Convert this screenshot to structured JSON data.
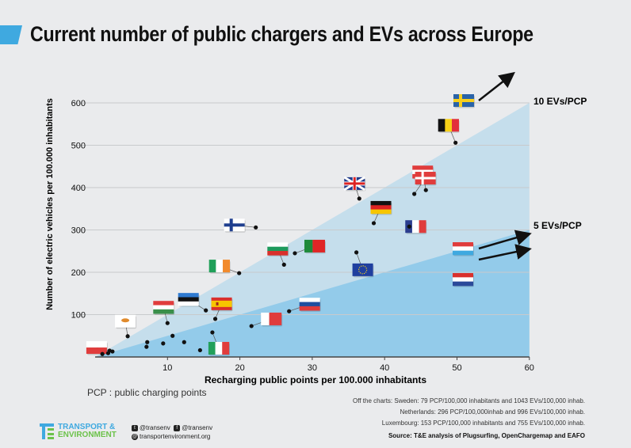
{
  "header": {
    "title": "Current number of public chargers and EVs across Europe",
    "accent": "#3fa9e0"
  },
  "chart_data": {
    "type": "scatter",
    "xlabel": "Recharging public points per 100.000 inhabitants",
    "ylabel": "Number of electric vehicles per 100.000 inhabitants",
    "xlim": [
      0,
      60
    ],
    "ylim": [
      0,
      650
    ],
    "xticks": [
      10,
      20,
      30,
      40,
      50,
      60
    ],
    "yticks": [
      100,
      200,
      300,
      400,
      500,
      600
    ],
    "grid": "horizontal",
    "ratio_lines": [
      {
        "label": "10 EVs/PCP",
        "ratio": 10,
        "color": "#c5deec"
      },
      {
        "label": "5 EVs/PCP",
        "ratio": 5,
        "color": "#93cbea"
      }
    ],
    "points": [
      {
        "country": "Belgium",
        "x": 49.8,
        "y": 506
      },
      {
        "country": "United Kingdom",
        "x": 36.5,
        "y": 374
      },
      {
        "country": "Germany",
        "x": 38.5,
        "y": 316
      },
      {
        "country": "Austria",
        "x": 45.7,
        "y": 394
      },
      {
        "country": "Denmark",
        "x": 44.1,
        "y": 385
      },
      {
        "country": "France",
        "x": 43.4,
        "y": 308
      },
      {
        "country": "European Union",
        "x": 36.1,
        "y": 247
      },
      {
        "country": "Finland",
        "x": 22.2,
        "y": 306
      },
      {
        "country": "Bulgaria",
        "x": 26.1,
        "y": 218
      },
      {
        "country": "Portugal",
        "x": 27.6,
        "y": 245
      },
      {
        "country": "Ireland",
        "x": 19.9,
        "y": 198
      },
      {
        "country": "Hungary",
        "x": 10.0,
        "y": 80
      },
      {
        "country": "Estonia",
        "x": 15.3,
        "y": 110
      },
      {
        "country": "Spain",
        "x": 16.6,
        "y": 90
      },
      {
        "country": "Cyprus",
        "x": 4.5,
        "y": 49
      },
      {
        "country": "Poland",
        "x": 2.4,
        "y": 13
      },
      {
        "country": "Italy",
        "x": 16.2,
        "y": 58
      },
      {
        "country": "Malta",
        "x": 21.6,
        "y": 73
      },
      {
        "country": "Slovenia",
        "x": 26.8,
        "y": 108
      },
      {
        "country": "",
        "x": 1.0,
        "y": 7
      },
      {
        "country": "",
        "x": 1.8,
        "y": 9
      },
      {
        "country": "",
        "x": 2.0,
        "y": 15
      },
      {
        "country": "",
        "x": 7.1,
        "y": 24
      },
      {
        "country": "",
        "x": 7.2,
        "y": 35
      },
      {
        "country": "",
        "x": 9.4,
        "y": 32
      },
      {
        "country": "",
        "x": 10.7,
        "y": 50
      },
      {
        "country": "",
        "x": 12.3,
        "y": 35
      },
      {
        "country": "",
        "x": 14.5,
        "y": 16
      }
    ],
    "off_chart": [
      {
        "country": "Sweden",
        "x": 79,
        "y": 1043
      },
      {
        "country": "Luxembourg",
        "x": 153,
        "y": 755
      },
      {
        "country": "Netherlands",
        "x": 296,
        "y": 996
      }
    ]
  },
  "footer": {
    "pcp_note": "PCP : public charging points",
    "off_chart_lines": [
      "Off the charts: Sweden: 79 PCP/100,000 inhabitants and 1043 EVs/100,000 inhab.",
      "Netherlands: 296 PCP/100,000inhab and 996 EVs/100,000 inhab.",
      "Luxembourg: 153 PCP/100,000 inhabitants and 755 EVs/100,000 inhab."
    ],
    "source": "Source: T&E analysis of Plugsurfing, OpenChargemap and EAFO",
    "logo_line1": "TRANSPORT &",
    "logo_line2": "ENVIRONMENT",
    "twitter": "@transenv",
    "facebook": "@transenv",
    "website": "transportenvironment.org"
  }
}
